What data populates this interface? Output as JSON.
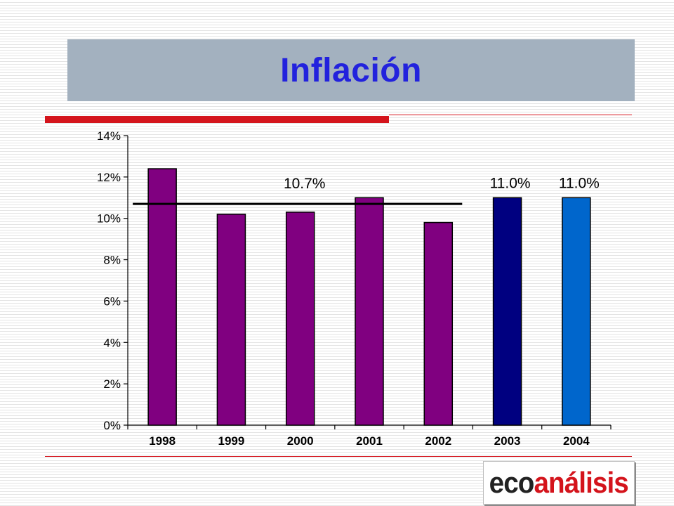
{
  "header": {
    "title": "Inflación"
  },
  "chart_data": {
    "type": "bar",
    "categories": [
      "1998",
      "1999",
      "2000",
      "2001",
      "2002",
      "2003",
      "2004"
    ],
    "values": [
      12.4,
      10.2,
      10.3,
      11.0,
      9.8,
      11.0,
      11.0
    ],
    "bar_colors": [
      "#800080",
      "#800080",
      "#800080",
      "#800080",
      "#800080",
      "#000080",
      "#0066cc"
    ],
    "y_ticks": [
      "0%",
      "2%",
      "4%",
      "6%",
      "8%",
      "10%",
      "12%",
      "14%"
    ],
    "ylim": [
      0,
      14
    ],
    "reference_line": {
      "value": 10.7,
      "from_category": "1998",
      "to_category": "2002",
      "label": "10.7%"
    },
    "data_labels": [
      {
        "category": "2003",
        "text": "11.0%"
      },
      {
        "category": "2004",
        "text": "11.0%"
      }
    ],
    "grid": false,
    "legend": "none"
  },
  "logo": {
    "part1": "eco",
    "part2": "análisis"
  },
  "colors": {
    "title": "#2222dd",
    "title_background": "#a3b1bf",
    "accent_red": "#d4141c"
  }
}
